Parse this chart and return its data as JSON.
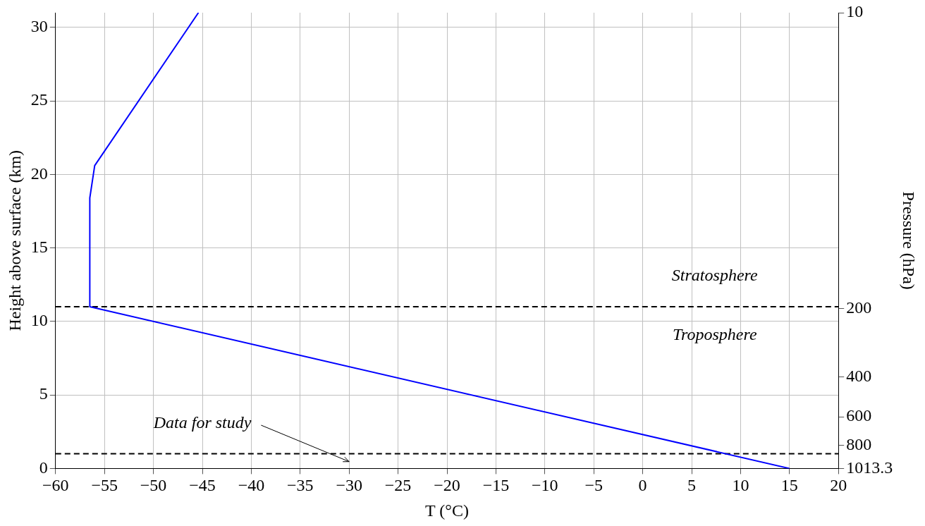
{
  "chart_data": {
    "type": "line",
    "xlabel": "T (°C)",
    "ylabel": "Height above surface (km)",
    "y2label": "Pressure (hPa)",
    "series": [
      {
        "color": "#0000ff",
        "x": [
          15,
          -56.5,
          -56.5,
          -56,
          -45.4
        ],
        "values": [
          0,
          11,
          18.4,
          20.6,
          31
        ]
      }
    ],
    "xlim": [
      -60,
      20
    ],
    "xticks": [
      -60,
      -55,
      -50,
      -45,
      -40,
      -35,
      -30,
      -25,
      -20,
      -15,
      -10,
      -5,
      0,
      5,
      10,
      15,
      20
    ],
    "ylim": [
      0,
      31
    ],
    "yticks": [
      0,
      5,
      10,
      15,
      20,
      25,
      30
    ],
    "y2lim": [
      1013.3,
      10
    ],
    "y2ticks": [
      1013.3,
      800,
      600,
      400,
      200,
      10
    ],
    "log": "y2",
    "ref_lines": [
      {
        "axis": "y",
        "value": 11,
        "color": "#000000",
        "line_style": "dashed"
      },
      {
        "axis": "y",
        "value": 1,
        "color": "#000000",
        "line_style": "dashed"
      }
    ],
    "annotations": [
      "Stratosphere",
      "Troposphere",
      "Data for study"
    ],
    "grid": true,
    "legend": false,
    "marker": "none",
    "line_style": "solid"
  }
}
